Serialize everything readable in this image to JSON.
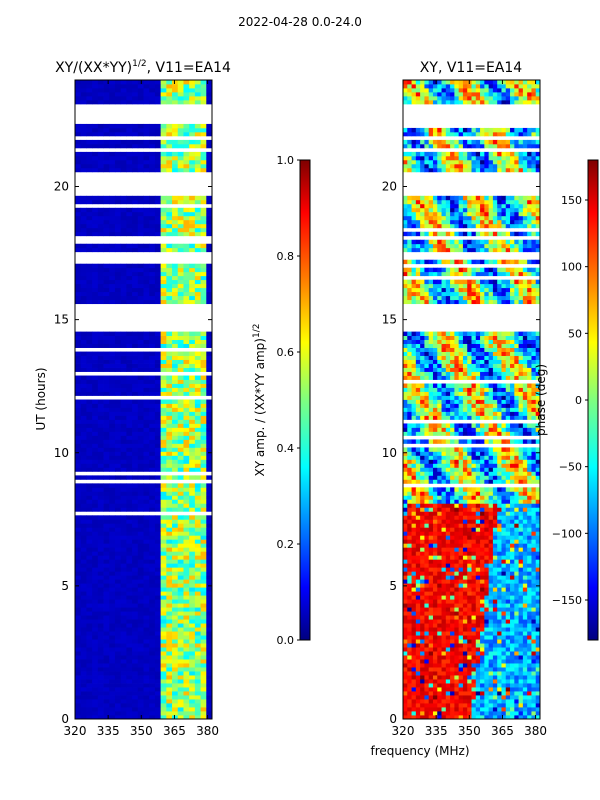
{
  "figure": {
    "suptitle": "2022-04-28 0.0-24.0",
    "shared_xlabel": "frequency (MHz)"
  },
  "chart_data": [
    {
      "type": "heatmap",
      "title": "XY/(XX*YY)",
      "title_exponent": "1/2",
      "title_suffix": ", V11=EA14",
      "xlabel": "",
      "ylabel": "UT (hours)",
      "xlim": [
        320,
        382
      ],
      "ylim": [
        0,
        24
      ],
      "xticks": [
        320,
        335,
        350,
        365,
        380
      ],
      "yticks": [
        0,
        5,
        10,
        15,
        20
      ],
      "signal_channels_mhz": [
        360.0,
        362.5,
        365.5,
        369.0,
        372.5,
        376.0,
        378.5
      ],
      "gaps_hours": [
        [
          14.55,
          15.55
        ],
        [
          17.25,
          17.55
        ],
        [
          19.7,
          20.55
        ],
        [
          21.3,
          21.5
        ],
        [
          22.3,
          23.05
        ]
      ],
      "colorbar": {
        "label": "XY amp. / (XX*YY amp)",
        "label_exponent": "1/2",
        "range": [
          0.0,
          1.0
        ],
        "ticks": [
          "0.0",
          "0.2",
          "0.4",
          "0.6",
          "0.8",
          "1.0"
        ],
        "colormap": "jet"
      }
    },
    {
      "type": "heatmap",
      "title": "XY, V11=EA14",
      "xlabel": "frequency (MHz)",
      "ylabel": "",
      "xlim": [
        320,
        382
      ],
      "ylim": [
        0,
        24
      ],
      "xticks": [
        320,
        335,
        350,
        365,
        380
      ],
      "yticks": [
        0,
        5,
        10,
        15,
        20
      ],
      "gaps_hours": [
        [
          14.55,
          15.55
        ],
        [
          17.25,
          17.55
        ],
        [
          19.7,
          20.55
        ],
        [
          21.3,
          21.5
        ],
        [
          22.3,
          23.05
        ]
      ],
      "colorbar": {
        "label": "phase (deg)",
        "range": [
          -180,
          180
        ],
        "ticks": [
          "150",
          "100",
          "50",
          "0",
          "−50",
          "−100",
          "−150"
        ],
        "colormap": "jet"
      }
    }
  ],
  "colors": {
    "jet": [
      "#00007f",
      "#0000ff",
      "#007fff",
      "#00ffff",
      "#7fff7f",
      "#ffff00",
      "#ff7f00",
      "#ff0000",
      "#7f0000"
    ]
  }
}
